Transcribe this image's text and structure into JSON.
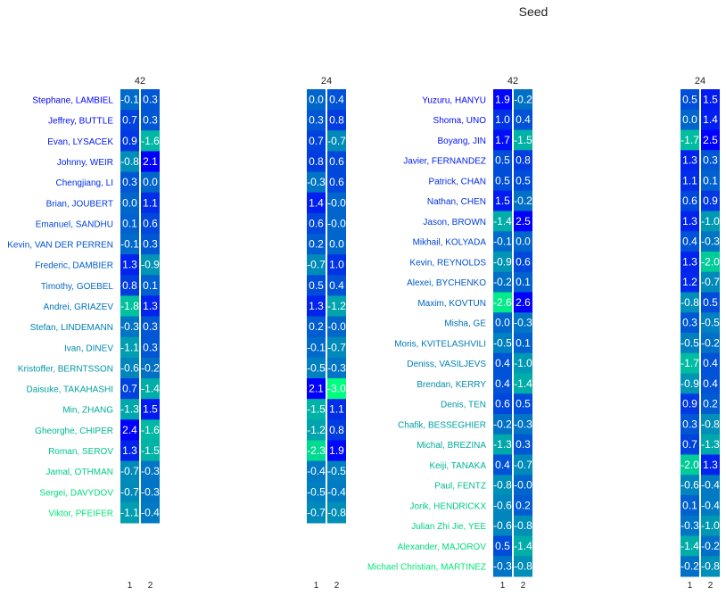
{
  "chart_data": {
    "type": "heatmap",
    "title": "Seed",
    "colormap": [
      "#0000ff",
      "#00ff80"
    ],
    "color_range": [
      2.0,
      -3.0
    ],
    "text_color": "#ffffff",
    "column_ticks": [
      "1",
      "2"
    ],
    "panels": [
      {
        "header": "42",
        "rows": [
          "Stephane, LAMBIEL",
          "Jeffrey, BUTTLE",
          "Evan, LYSACEK",
          "Johnny, WEIR",
          "Chengjiang, LI",
          "Brian, JOUBERT",
          "Emanuel, SANDHU",
          "Kevin, VAN DER PERREN",
          "Frederic, DAMBIER",
          "Timothy, GOEBEL",
          "Andrei, GRIAZEV",
          "Stefan, LINDEMANN",
          "Ivan, DINEV",
          "Kristoffer, BERNTSSON",
          "Daisuke, TAKAHASHI",
          "Min, ZHANG",
          "Gheorghe, CHIPER",
          "Roman, SEROV",
          "Jamal, OTHMAN",
          "Sergei, DAVYDOV",
          "Viktor, PFEIFER"
        ],
        "values": [
          [
            -0.1,
            0.3
          ],
          [
            0.7,
            0.3
          ],
          [
            0.9,
            -1.6
          ],
          [
            -0.8,
            2.1
          ],
          [
            0.3,
            0.0
          ],
          [
            0.0,
            1.1
          ],
          [
            0.1,
            0.6
          ],
          [
            -0.1,
            0.3
          ],
          [
            1.3,
            -0.9
          ],
          [
            0.8,
            0.1
          ],
          [
            -1.8,
            1.3
          ],
          [
            -0.3,
            0.3
          ],
          [
            -1.1,
            0.3
          ],
          [
            -0.6,
            -0.2
          ],
          [
            0.7,
            -1.4
          ],
          [
            -1.3,
            1.5
          ],
          [
            2.4,
            -1.6
          ],
          [
            1.3,
            -1.5
          ],
          [
            -0.7,
            -0.3
          ],
          [
            -0.7,
            -0.3
          ],
          [
            -1.1,
            -0.4
          ]
        ]
      },
      {
        "header": "24",
        "rows": [],
        "values": [
          [
            0.0,
            0.4
          ],
          [
            0.3,
            0.8
          ],
          [
            0.7,
            -0.7
          ],
          [
            0.8,
            0.6
          ],
          [
            -0.3,
            0.6
          ],
          [
            1.4,
            -0.0
          ],
          [
            0.6,
            -0.0
          ],
          [
            0.2,
            0.0
          ],
          [
            -0.7,
            1.0
          ],
          [
            0.5,
            0.4
          ],
          [
            1.3,
            -1.2
          ],
          [
            0.2,
            -0.0
          ],
          [
            -0.1,
            -0.7
          ],
          [
            -0.5,
            -0.3
          ],
          [
            2.1,
            -3.0
          ],
          [
            -1.5,
            1.1
          ],
          [
            -1.2,
            0.8
          ],
          [
            -2.3,
            1.9
          ],
          [
            -0.4,
            -0.5
          ],
          [
            -0.5,
            -0.4
          ],
          [
            -0.7,
            -0.8
          ]
        ]
      },
      {
        "header": "42",
        "rows": [
          "Yuzuru, HANYU",
          "Shoma, UNO",
          "Boyang, JIN",
          "Javier, FERNANDEZ",
          "Patrick, CHAN",
          "Nathan, CHEN",
          "Jason, BROWN",
          "Mikhail, KOLYADA",
          "Kevin, REYNOLDS",
          "Alexei, BYCHENKO",
          "Maxim, KOVTUN",
          "Misha, GE",
          "Moris, KVITELASHVILI",
          "Deniss, VASILJEVS",
          "Brendan, KERRY",
          "Denis, TEN",
          "Chafik, BESSEGHIER",
          "Michal, BREZINA",
          "Keiji, TANAKA",
          "Paul, FENTZ",
          "Jorik, HENDRICKX",
          "Julian Zhi Jie, YEE",
          "Alexander, MAJOROV",
          "Michael Christian, MARTINEZ"
        ],
        "values": [
          [
            1.9,
            -0.2
          ],
          [
            1.0,
            0.4
          ],
          [
            1.7,
            -1.5
          ],
          [
            0.5,
            0.8
          ],
          [
            0.5,
            0.5
          ],
          [
            1.5,
            -0.2
          ],
          [
            -1.4,
            2.5
          ],
          [
            -0.1,
            0.0
          ],
          [
            -0.9,
            0.6
          ],
          [
            -0.2,
            0.1
          ],
          [
            -2.6,
            2.6
          ],
          [
            0.0,
            -0.3
          ],
          [
            -0.5,
            0.1
          ],
          [
            0.4,
            -1.0
          ],
          [
            0.4,
            -1.4
          ],
          [
            0.6,
            0.5
          ],
          [
            -0.2,
            -0.3
          ],
          [
            -1.3,
            0.3
          ],
          [
            0.4,
            -0.7
          ],
          [
            -0.8,
            -0.0
          ],
          [
            -0.6,
            0.2
          ],
          [
            -0.6,
            -0.8
          ],
          [
            0.5,
            -1.4
          ],
          [
            -0.3,
            -0.8
          ]
        ]
      },
      {
        "header": "24",
        "rows": [],
        "values": [
          [
            0.5,
            1.5
          ],
          [
            0.0,
            1.4
          ],
          [
            -1.7,
            2.5
          ],
          [
            1.3,
            0.3
          ],
          [
            1.1,
            0.1
          ],
          [
            0.6,
            0.9
          ],
          [
            1.3,
            -1.0
          ],
          [
            0.4,
            -0.3
          ],
          [
            1.3,
            -2.0
          ],
          [
            1.2,
            -0.7
          ],
          [
            -0.8,
            0.5
          ],
          [
            0.3,
            -0.5
          ],
          [
            -0.5,
            -0.2
          ],
          [
            -1.7,
            0.4
          ],
          [
            -0.9,
            0.4
          ],
          [
            0.9,
            0.2
          ],
          [
            0.3,
            -0.8
          ],
          [
            0.7,
            -1.3
          ],
          [
            -2.0,
            1.3
          ],
          [
            -0.6,
            -0.4
          ],
          [
            0.1,
            -0.4
          ],
          [
            -0.3,
            -1.0
          ],
          [
            -1.4,
            -0.2
          ],
          [
            -0.2,
            -0.8
          ]
        ]
      }
    ]
  }
}
